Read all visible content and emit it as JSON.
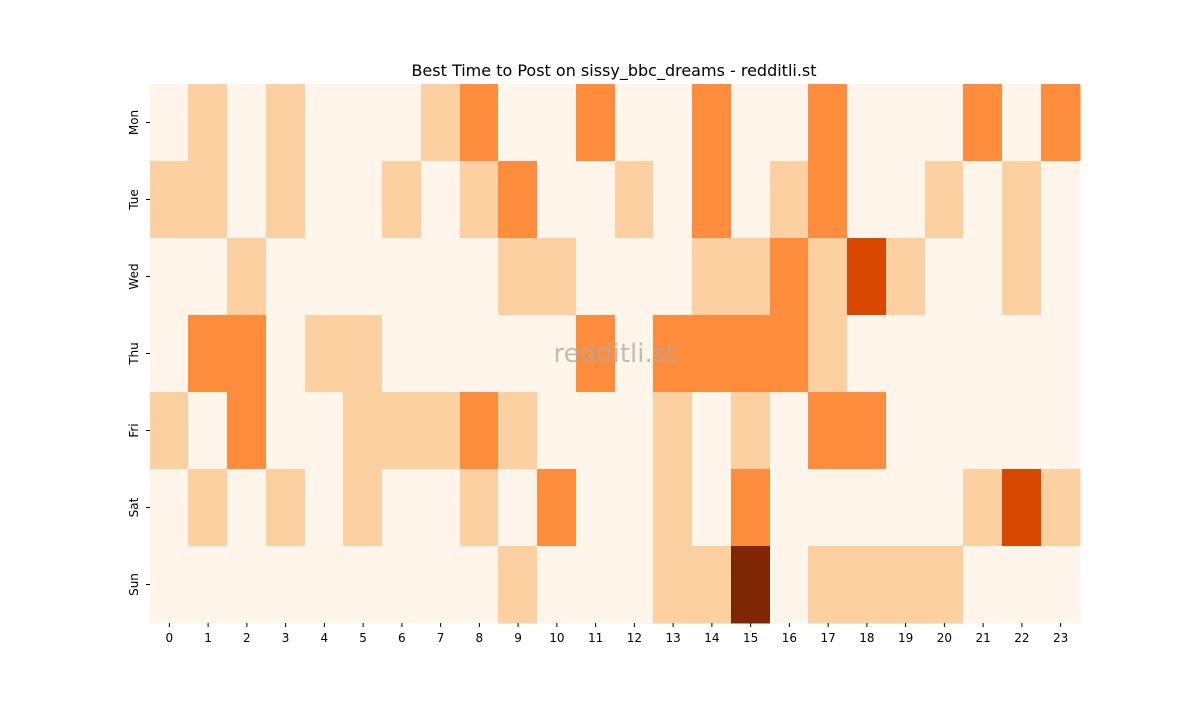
{
  "chart_data": {
    "type": "heatmap",
    "title": "Best Time to Post on sissy_bbc_dreams - redditli.st",
    "xlabel": "",
    "ylabel": "",
    "x_categories": [
      "0",
      "1",
      "2",
      "3",
      "4",
      "5",
      "6",
      "7",
      "8",
      "9",
      "10",
      "11",
      "12",
      "13",
      "14",
      "15",
      "16",
      "17",
      "18",
      "19",
      "20",
      "21",
      "22",
      "23"
    ],
    "y_categories": [
      "Mon",
      "Tue",
      "Wed",
      "Thu",
      "Fri",
      "Sat",
      "Sun"
    ],
    "values": [
      [
        0,
        1,
        0,
        1,
        0,
        0,
        0,
        1,
        2,
        0,
        0,
        2,
        0,
        0,
        2,
        0,
        0,
        2,
        0,
        0,
        0,
        2,
        0,
        2
      ],
      [
        1,
        1,
        0,
        1,
        0,
        0,
        1,
        0,
        1,
        2,
        0,
        0,
        1,
        0,
        2,
        0,
        1,
        2,
        0,
        0,
        1,
        0,
        1,
        0
      ],
      [
        0,
        0,
        1,
        0,
        0,
        0,
        0,
        0,
        0,
        1,
        1,
        0,
        0,
        0,
        1,
        1,
        2,
        1,
        3,
        1,
        0,
        0,
        1,
        0
      ],
      [
        0,
        2,
        2,
        0,
        1,
        1,
        0,
        0,
        0,
        0,
        0,
        2,
        0,
        2,
        2,
        2,
        2,
        1,
        0,
        0,
        0,
        0,
        0,
        0
      ],
      [
        1,
        0,
        2,
        0,
        0,
        1,
        1,
        1,
        2,
        1,
        0,
        0,
        0,
        1,
        0,
        1,
        0,
        2,
        2,
        0,
        0,
        0,
        0,
        0
      ],
      [
        0,
        1,
        0,
        1,
        0,
        1,
        0,
        0,
        1,
        0,
        2,
        0,
        0,
        1,
        0,
        2,
        0,
        0,
        0,
        0,
        0,
        1,
        3,
        1
      ],
      [
        0,
        0,
        0,
        0,
        0,
        0,
        0,
        0,
        0,
        1,
        0,
        0,
        0,
        1,
        1,
        4,
        0,
        1,
        1,
        1,
        1,
        0,
        0,
        0
      ]
    ],
    "vmin": 0,
    "vmax": 4,
    "colormap": [
      "#fff5eb",
      "#fdd0a2",
      "#fd8d3c",
      "#d94801",
      "#7f2704"
    ],
    "legend": "none",
    "grid": false,
    "watermark": "redditli.st"
  }
}
